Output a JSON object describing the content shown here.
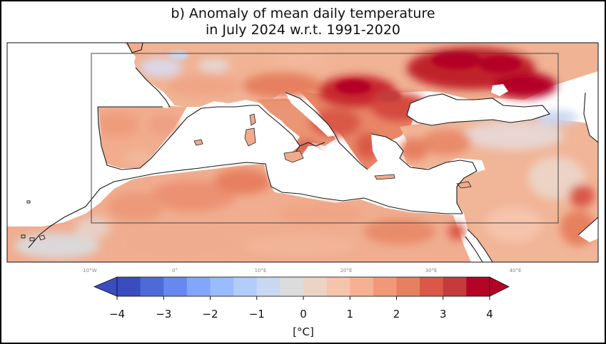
{
  "title": {
    "line1": "b) Anomaly of mean daily temperature",
    "line2": "in July 2024 w.r.t. 1991-2020"
  },
  "map": {
    "longitude_labels": [
      "10°W",
      "0°",
      "10°E",
      "20°E",
      "30°E",
      "40°E"
    ]
  },
  "colorbar": {
    "unit_label": "[°C]",
    "ticks": [
      "−4",
      "−3",
      "−2",
      "−1",
      "0",
      "1",
      "2",
      "3",
      "4"
    ],
    "tick_values": [
      -4,
      -3,
      -2,
      -1,
      0,
      1,
      2,
      3,
      4
    ],
    "colors": [
      "#3a4cc0",
      "#4e6ad8",
      "#6788ee",
      "#82a6fb",
      "#9abbff",
      "#b2ccfb",
      "#c9d7f0",
      "#dddcdc",
      "#ecd3c5",
      "#f5c4ac",
      "#f6b092",
      "#f29878",
      "#e6805e",
      "#d95847",
      "#c33b3b",
      "#b40426"
    ]
  }
}
